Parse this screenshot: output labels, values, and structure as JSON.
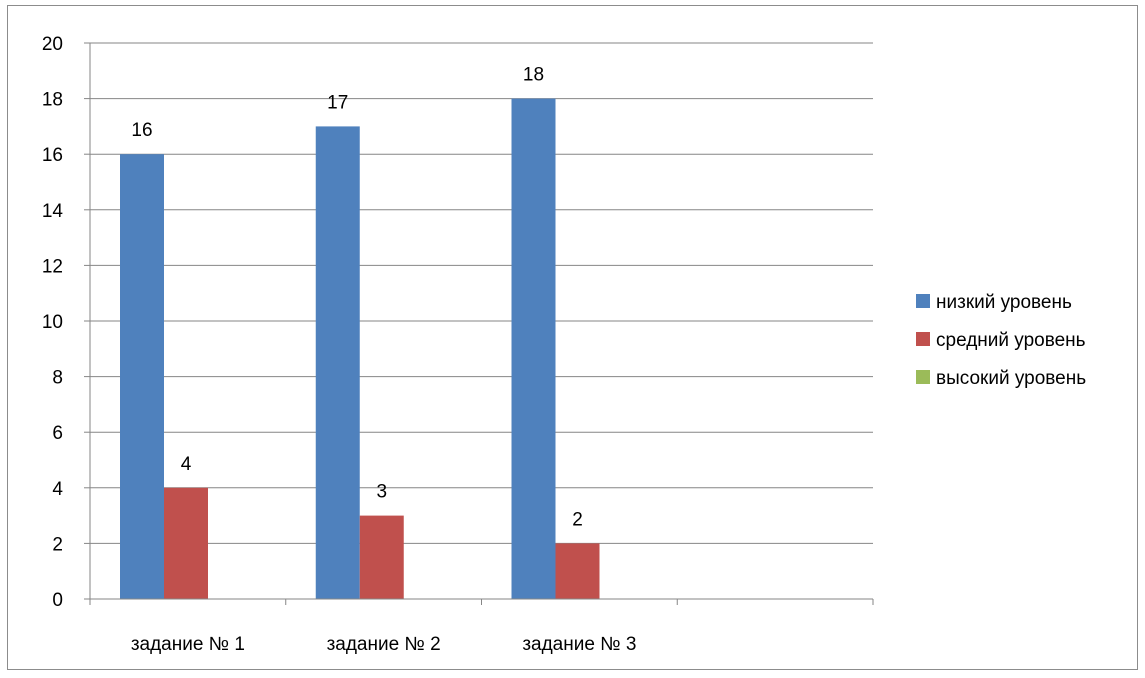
{
  "chart_data": {
    "type": "bar",
    "categories": [
      "задание № 1",
      "задание № 2",
      "задание № 3",
      ""
    ],
    "series": [
      {
        "name": "низкий уровень",
        "values": [
          16,
          17,
          18,
          null
        ],
        "color": "#4f81bd"
      },
      {
        "name": "средний уровень",
        "values": [
          4,
          3,
          2,
          null
        ],
        "color": "#c0504d"
      },
      {
        "name": "высокий уровень",
        "values": [
          0,
          0,
          0,
          null
        ],
        "color": "#9bbb59"
      }
    ],
    "data_labels": [
      [
        "16",
        "17",
        "18",
        ""
      ],
      [
        "4",
        "3",
        "2",
        ""
      ],
      [
        "",
        "",
        "",
        ""
      ]
    ],
    "yticks": [
      "0",
      "2",
      "4",
      "6",
      "8",
      "10",
      "12",
      "14",
      "16",
      "18",
      "20"
    ],
    "ylim": [
      0,
      20
    ],
    "title": "",
    "xlabel": "",
    "ylabel": "",
    "grid": true,
    "legend": "right"
  }
}
